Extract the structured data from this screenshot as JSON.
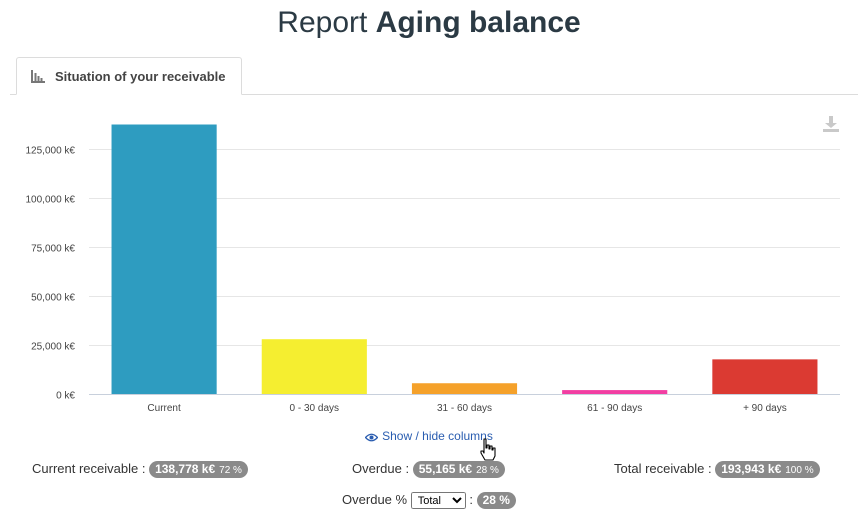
{
  "header": {
    "title_prefix": "Report",
    "title_main": "Aging balance"
  },
  "tab": {
    "label": "Situation of your receivable",
    "icon": "bar-chart-icon"
  },
  "toolbar": {
    "download_icon": "download-icon"
  },
  "chart_data": {
    "type": "bar",
    "categories": [
      "Current",
      "0 - 30 days",
      "31 - 60 days",
      "61 - 90 days",
      "+ 90 days"
    ],
    "values": [
      137700,
      28000,
      5500,
      2000,
      17700
    ],
    "colors": [
      "#2e9cc0",
      "#f5ee30",
      "#f5a12a",
      "#f23ea2",
      "#db3a32"
    ],
    "yticks": [
      0,
      25000,
      50000,
      75000,
      100000,
      125000
    ],
    "ytick_labels": [
      "0 k€",
      "25,000 k€",
      "50,000 k€",
      "75,000 k€",
      "100,000 k€",
      "125,000 k€"
    ],
    "ylim": [
      0,
      140000
    ],
    "xlabel": "",
    "ylabel": "",
    "grid": true
  },
  "columns_toggle": {
    "label": "Show / hide columns"
  },
  "summary": {
    "current": {
      "label": "Current receivable :",
      "value": "138,778 k€",
      "pct": "72 %"
    },
    "overdue": {
      "label": "Overdue :",
      "value": "55,165 k€",
      "pct": "28 %"
    },
    "total": {
      "label": "Total receivable :",
      "value": "193,943 k€",
      "pct": "100 %"
    },
    "overdue_percent": {
      "label": "Overdue %",
      "select_value": "Total",
      "colon": ":",
      "value": "28 %"
    }
  }
}
